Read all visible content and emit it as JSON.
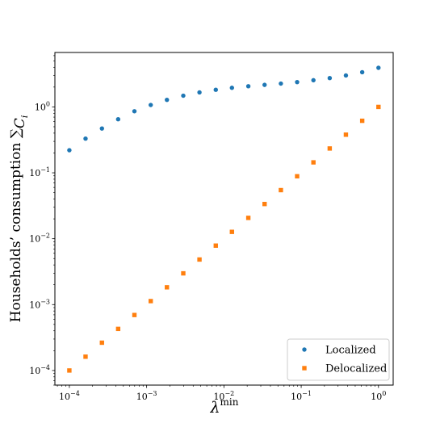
{
  "chart_data": {
    "type": "scatter",
    "title": "",
    "xlabel": "λ",
    "xlabel_superscript": "min",
    "ylabel": "Households’ consumption ∑",
    "ylabel_symbol": "C",
    "ylabel_subscript": "i",
    "x_scale": "log",
    "y_scale": "log",
    "xlim": [
      6.5e-05,
      1.55
    ],
    "ylim": [
      6e-05,
      6.7
    ],
    "x_ticks": [
      {
        "value": 0.0001,
        "base": "10",
        "exp": "−4"
      },
      {
        "value": 0.001,
        "base": "10",
        "exp": "−3"
      },
      {
        "value": 0.01,
        "base": "10",
        "exp": "−2"
      },
      {
        "value": 0.1,
        "base": "10",
        "exp": "−1"
      },
      {
        "value": 1,
        "base": "10",
        "exp": "0"
      }
    ],
    "y_ticks": [
      {
        "value": 0.0001,
        "base": "10",
        "exp": "−4"
      },
      {
        "value": 0.001,
        "base": "10",
        "exp": "−3"
      },
      {
        "value": 0.01,
        "base": "10",
        "exp": "−2"
      },
      {
        "value": 0.1,
        "base": "10",
        "exp": "−1"
      },
      {
        "value": 1,
        "base": "10",
        "exp": "0"
      }
    ],
    "grid": false,
    "legend_position": "lower-right",
    "x": [
      0.0001,
      0.000162,
      0.000264,
      0.000428,
      0.000695,
      0.00113,
      0.00183,
      0.00298,
      0.00483,
      0.00785,
      0.0127,
      0.0207,
      0.0336,
      0.0546,
      0.0886,
      0.144,
      0.234,
      0.379,
      0.616,
      1.0
    ],
    "series": [
      {
        "name": "Localized",
        "marker": "circle",
        "color": "#1f77b4",
        "values": [
          0.22,
          0.33,
          0.47,
          0.65,
          0.86,
          1.07,
          1.28,
          1.48,
          1.66,
          1.82,
          1.95,
          2.06,
          2.16,
          2.26,
          2.38,
          2.54,
          2.74,
          3.0,
          3.36,
          3.92
        ]
      },
      {
        "name": "Delocalized",
        "marker": "square",
        "color": "#ff7f0e",
        "values": [
          0.0001,
          0.000162,
          0.000264,
          0.000428,
          0.000695,
          0.00113,
          0.00183,
          0.00298,
          0.00483,
          0.00785,
          0.0127,
          0.0207,
          0.0336,
          0.0546,
          0.0886,
          0.144,
          0.234,
          0.379,
          0.616,
          1.0
        ]
      }
    ]
  }
}
